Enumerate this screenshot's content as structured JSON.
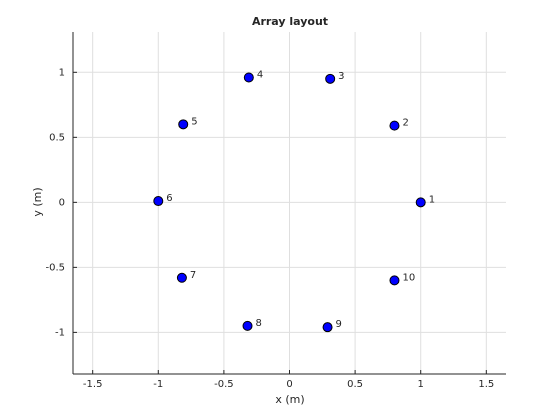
{
  "chart_data": {
    "type": "scatter",
    "title": "Array layout",
    "x_label": "x (m)",
    "y_label": "y (m)",
    "x": [
      1.0,
      0.8,
      0.31,
      -0.31,
      -0.81,
      -1.0,
      -0.82,
      -0.32,
      0.29,
      0.8
    ],
    "y": [
      0.0,
      0.59,
      0.95,
      0.96,
      0.6,
      0.01,
      -0.58,
      -0.95,
      -0.96,
      -0.6
    ],
    "labels": [
      "1",
      "2",
      "3",
      "4",
      "5",
      "6",
      "7",
      "8",
      "9",
      "10"
    ],
    "color": "#0000ff",
    "edge_color": "#000000",
    "xlim": [
      -1.65,
      1.65
    ],
    "ylim": [
      -1.32,
      1.31
    ],
    "xticks": [
      -1.5,
      -1,
      -0.5,
      0,
      0.5,
      1,
      1.5
    ],
    "yticks": [
      -1,
      -0.5,
      0,
      0.5,
      1
    ],
    "grid": true
  }
}
